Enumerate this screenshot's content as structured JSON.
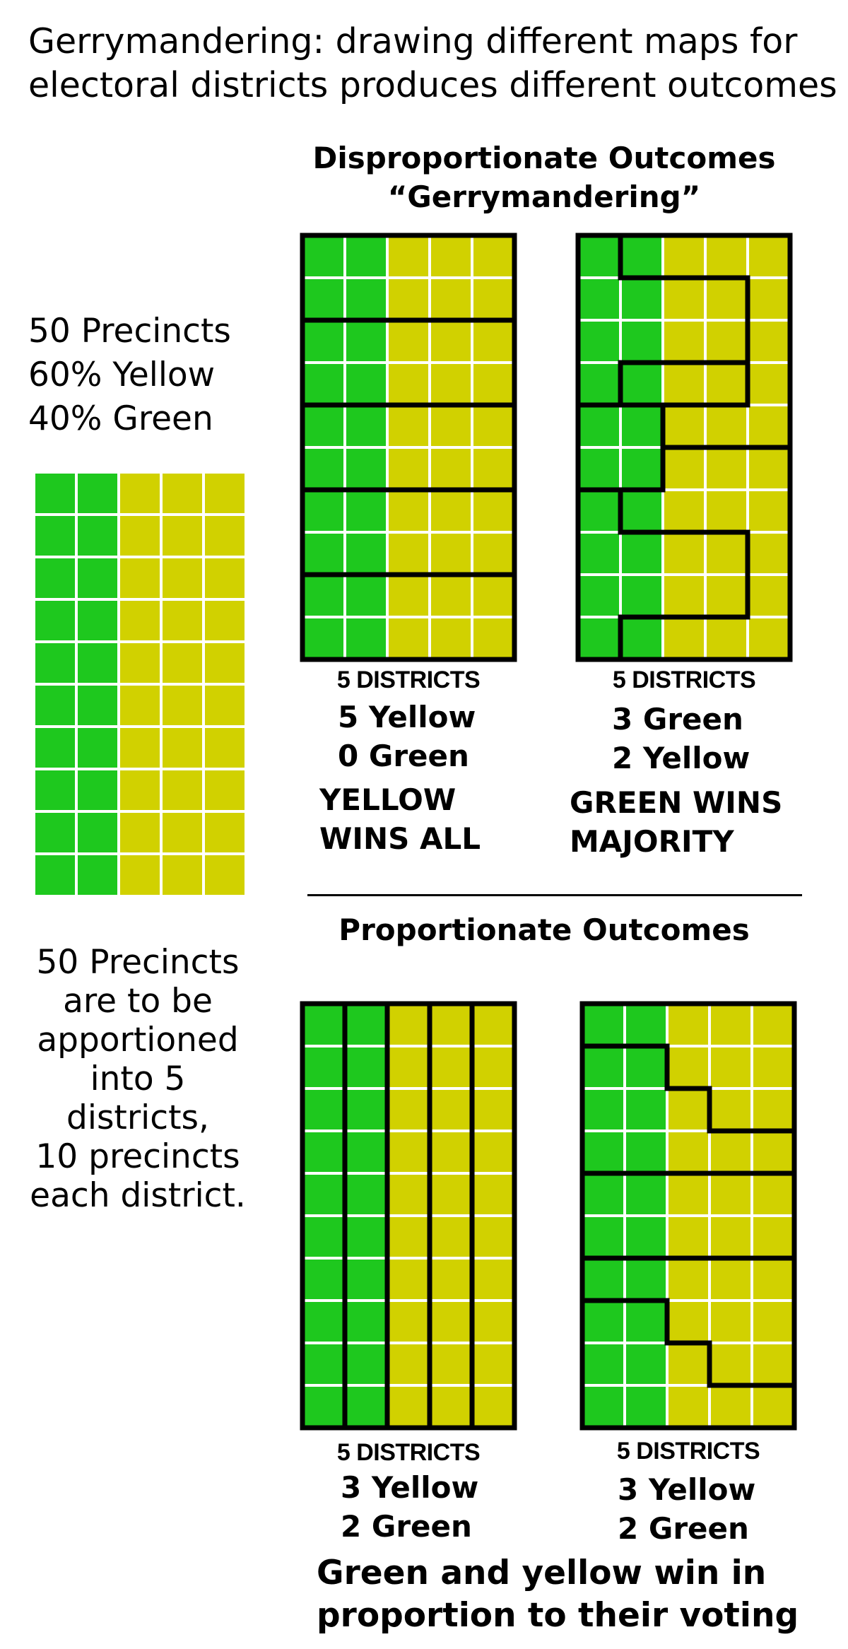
{
  "title_lines": [
    "Gerrymandering: drawing different maps for",
    "electoral districts produces different outcomes"
  ],
  "stats_lines": [
    "50 Precincts",
    "60% Yellow",
    "40% Green"
  ],
  "note_lines": [
    "50 Precincts",
    "are to be",
    "apportioned",
    "into 5",
    "districts,",
    "10 precincts",
    "each district."
  ],
  "colors": {
    "green": "#1ec81e",
    "yellow": "#d1d100",
    "gridline": "#ffffff",
    "boundary": "#000000"
  },
  "grid": {
    "rows": 10,
    "cols": 5,
    "green_cols": 2
  },
  "disproportionate": {
    "heading_lines": [
      "Disproportionate Outcomes",
      "“Gerrymandering”"
    ],
    "maps": [
      {
        "districts_label": "5 DISTRICTS",
        "result_lines": [
          "5 Yellow",
          "0 Green"
        ],
        "verdict_lines": [
          "YELLOW",
          "WINS ALL"
        ]
      },
      {
        "districts_label": "5 DISTRICTS",
        "result_lines": [
          "3 Green",
          "2 Yellow"
        ],
        "verdict_lines": [
          "GREEN WINS",
          "MAJORITY"
        ]
      }
    ]
  },
  "proportionate": {
    "heading": "Proportionate Outcomes",
    "maps": [
      {
        "districts_label": "5 DISTRICTS",
        "result_lines": [
          "3 Yellow",
          "2 Green"
        ]
      },
      {
        "districts_label": "5 DISTRICTS",
        "result_lines": [
          "3 Yellow",
          "2 Green"
        ]
      }
    ],
    "conclusion_lines": [
      "Green and yellow win in",
      "proportion to their voting"
    ]
  }
}
